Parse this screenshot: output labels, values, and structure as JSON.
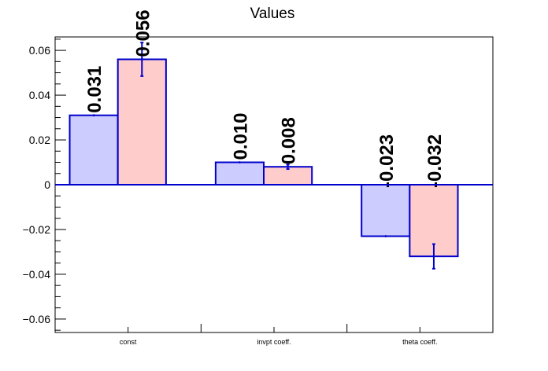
{
  "chart_data": {
    "type": "bar",
    "title": "Values",
    "xlabel": "",
    "ylabel": "",
    "categories": [
      "const",
      "invpt coeff.",
      "theta coeff."
    ],
    "series": [
      {
        "values": [
          0.031,
          0.01,
          -0.023
        ],
        "errors": [
          0,
          0,
          0
        ],
        "labels": [
          "0.031",
          "0.010",
          "-0.023"
        ],
        "color": "#ccccff"
      },
      {
        "values": [
          0.056,
          0.008,
          -0.032
        ],
        "errors": [
          0.0075,
          0.001,
          0.0055
        ],
        "labels": [
          "0.056",
          "0.008",
          "-0.032"
        ],
        "color": "#ffcccc"
      }
    ],
    "ylim": [
      -0.066,
      0.066
    ],
    "yticks": [
      -0.06,
      -0.04,
      -0.02,
      0,
      0.02,
      0.04,
      0.06
    ],
    "ytick_labels": [
      "−0.06",
      "−0.04",
      "−0.02",
      "0",
      "0.02",
      "0.04",
      "0.06"
    ],
    "bar_edge_color": "#0000cc",
    "zero_line_color": "#0000cc",
    "grid": false,
    "legend": "none"
  }
}
